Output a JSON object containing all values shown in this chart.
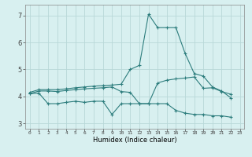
{
  "xlabel": "Humidex (Indice chaleur)",
  "ylabel": "",
  "bg_color": "#d8f0f0",
  "grid_color": "#b8d8d8",
  "line_color": "#2d7d7d",
  "xlim": [
    -0.5,
    23.5
  ],
  "ylim": [
    2.8,
    7.4
  ],
  "xticks": [
    0,
    1,
    2,
    3,
    4,
    5,
    6,
    7,
    8,
    9,
    10,
    11,
    12,
    13,
    14,
    15,
    16,
    17,
    18,
    19,
    20,
    21,
    22,
    23
  ],
  "yticks": [
    3,
    4,
    5,
    6,
    7
  ],
  "series": {
    "max": {
      "x": [
        0,
        1,
        2,
        3,
        4,
        5,
        6,
        7,
        8,
        9,
        10,
        11,
        12,
        13,
        14,
        15,
        16,
        17,
        18,
        19,
        20,
        21,
        22
      ],
      "y": [
        4.15,
        4.25,
        4.25,
        4.25,
        4.28,
        4.32,
        4.35,
        4.38,
        4.4,
        4.42,
        4.45,
        5.0,
        5.15,
        7.05,
        6.55,
        6.55,
        6.55,
        5.6,
        4.85,
        4.75,
        4.35,
        4.2,
        3.95
      ]
    },
    "mean": {
      "x": [
        0,
        1,
        2,
        3,
        4,
        5,
        6,
        7,
        8,
        9,
        10,
        11,
        12,
        13,
        14,
        15,
        16,
        17,
        18,
        19,
        20,
        21,
        22
      ],
      "y": [
        4.1,
        4.2,
        4.2,
        4.18,
        4.22,
        4.25,
        4.28,
        4.3,
        4.32,
        4.35,
        4.18,
        4.15,
        3.73,
        3.73,
        4.5,
        4.6,
        4.65,
        4.68,
        4.72,
        4.3,
        4.32,
        4.18,
        4.08
      ]
    },
    "min": {
      "x": [
        0,
        1,
        2,
        3,
        4,
        5,
        6,
        7,
        8,
        9,
        10,
        11,
        12,
        13,
        14,
        15,
        16,
        17,
        18,
        19,
        20,
        21,
        22
      ],
      "y": [
        4.1,
        4.12,
        3.73,
        3.73,
        3.78,
        3.82,
        3.78,
        3.82,
        3.82,
        3.33,
        3.73,
        3.73,
        3.73,
        3.73,
        3.73,
        3.73,
        3.48,
        3.38,
        3.33,
        3.33,
        3.28,
        3.28,
        3.23
      ]
    }
  }
}
